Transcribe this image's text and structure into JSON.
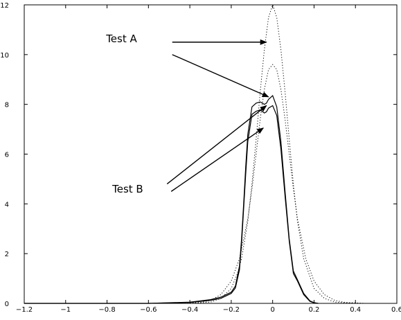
{
  "chart_data": {
    "type": "line",
    "title": "",
    "xlabel": "",
    "ylabel": "",
    "xlim": [
      -1.2,
      0.6
    ],
    "ylim": [
      0,
      12
    ],
    "grid": false,
    "legend": "none",
    "x_ticks": [
      -1.2,
      -1,
      -0.8,
      -0.6,
      -0.4,
      -0.2,
      0,
      0.2,
      0.4,
      0.6
    ],
    "x_tick_labels": [
      "−1.2",
      "−1",
      "−0.8",
      "−0.6",
      "−0.4",
      "−0.2",
      "0",
      "0.2",
      "0.4",
      "0.6"
    ],
    "y_ticks": [
      0,
      2,
      4,
      6,
      8,
      10,
      12
    ],
    "y_tick_labels": [
      "0",
      "2",
      "4",
      "6",
      "8",
      "10",
      "12"
    ],
    "series": [
      {
        "style": "solid",
        "color": "#000000",
        "x": [
          -1.2,
          -0.6,
          -0.4,
          -0.3,
          -0.25,
          -0.2,
          -0.18,
          -0.16,
          -0.15,
          -0.14,
          -0.13,
          -0.12,
          -0.1,
          -0.08,
          -0.06,
          -0.04,
          -0.03,
          -0.02,
          0,
          0.02,
          0.04,
          0.06,
          0.08,
          0.1,
          0.12,
          0.15,
          0.18,
          0.2,
          0.22
        ],
        "y": [
          0,
          0,
          0.05,
          0.15,
          0.25,
          0.45,
          0.7,
          1.5,
          2.6,
          4.0,
          5.5,
          6.8,
          7.9,
          8.05,
          8.1,
          8.0,
          8.05,
          8.2,
          8.35,
          7.9,
          6.5,
          4.5,
          2.6,
          1.3,
          0.95,
          0.4,
          0.1,
          0.03,
          0
        ]
      },
      {
        "style": "solid",
        "color": "#000000",
        "x": [
          -1.2,
          -0.6,
          -0.4,
          -0.3,
          -0.25,
          -0.2,
          -0.18,
          -0.16,
          -0.15,
          -0.14,
          -0.13,
          -0.12,
          -0.1,
          -0.08,
          -0.06,
          -0.04,
          -0.03,
          -0.02,
          0,
          0.02,
          0.04,
          0.06,
          0.08,
          0.1,
          0.12,
          0.15,
          0.18,
          0.2,
          0.22
        ],
        "y": [
          0,
          0,
          0.04,
          0.12,
          0.2,
          0.4,
          0.62,
          1.35,
          2.4,
          3.8,
          5.2,
          6.5,
          7.6,
          7.72,
          7.78,
          7.65,
          7.7,
          7.85,
          7.95,
          7.55,
          6.2,
          4.3,
          2.5,
          1.2,
          0.9,
          0.35,
          0.08,
          0.02,
          0
        ]
      },
      {
        "style": "dotted",
        "color": "#000000",
        "x": [
          -0.4,
          -0.3,
          -0.25,
          -0.2,
          -0.17,
          -0.15,
          -0.12,
          -0.1,
          -0.08,
          -0.06,
          -0.04,
          -0.02,
          0,
          0.02,
          0.04,
          0.06,
          0.08,
          0.1,
          0.12,
          0.15,
          0.2,
          0.25,
          0.3,
          0.4
        ],
        "y": [
          0,
          0.05,
          0.2,
          0.6,
          1.2,
          1.8,
          3.3,
          4.8,
          6.6,
          8.5,
          10.2,
          11.5,
          12.0,
          11.5,
          10.2,
          8.5,
          6.6,
          4.8,
          3.3,
          1.8,
          0.6,
          0.2,
          0.05,
          0
        ]
      },
      {
        "style": "dotted",
        "color": "#000000",
        "x": [
          -0.45,
          -0.35,
          -0.3,
          -0.25,
          -0.2,
          -0.16,
          -0.12,
          -0.1,
          -0.08,
          -0.06,
          -0.04,
          -0.02,
          0,
          0.02,
          0.04,
          0.06,
          0.08,
          0.1,
          0.12,
          0.16,
          0.2,
          0.25,
          0.3,
          0.35,
          0.45
        ],
        "y": [
          0,
          0.04,
          0.12,
          0.35,
          0.9,
          1.8,
          3.4,
          4.6,
          6.0,
          7.4,
          8.6,
          9.4,
          9.6,
          9.4,
          8.6,
          7.4,
          6.0,
          4.6,
          3.4,
          1.8,
          0.9,
          0.35,
          0.12,
          0.04,
          0
        ]
      }
    ],
    "annotations": [
      {
        "text": "Test A",
        "anchor": [
          -0.73,
          10.5
        ],
        "arrows": [
          {
            "from": [
              -0.485,
              10.5
            ],
            "to": [
              -0.03,
              10.5
            ]
          },
          {
            "from": [
              -0.485,
              10.0
            ],
            "to": [
              -0.02,
              8.3
            ]
          }
        ]
      },
      {
        "text": "Test B",
        "anchor": [
          -0.7,
          4.45
        ],
        "arrows": [
          {
            "from": [
              -0.51,
              4.8
            ],
            "to": [
              -0.03,
              7.95
            ]
          },
          {
            "from": [
              -0.49,
              4.5
            ],
            "to": [
              -0.045,
              7.05
            ]
          }
        ]
      }
    ]
  }
}
